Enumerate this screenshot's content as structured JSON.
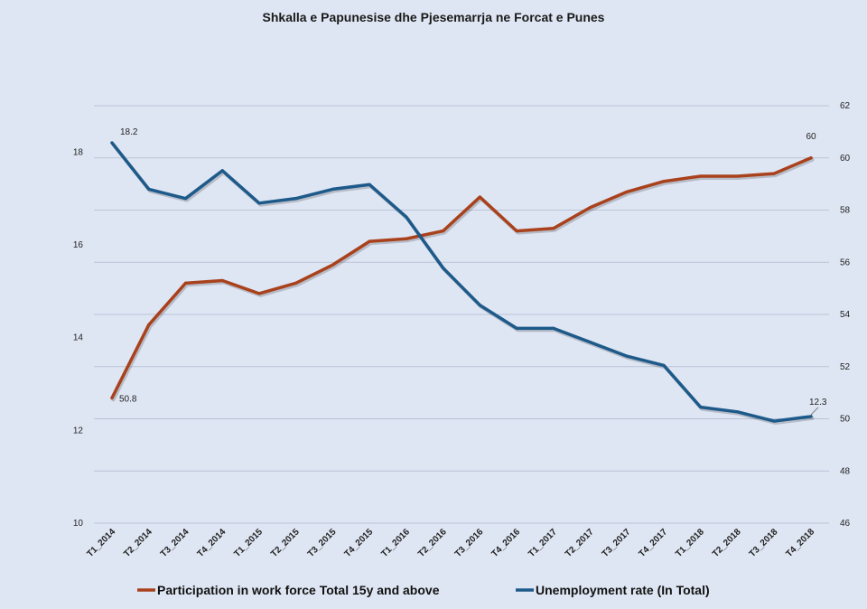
{
  "chart_data": {
    "type": "line",
    "title": "Shkalla  e Papunesise  dhe Pjesemarrja  ne Forcat e Punes",
    "categories": [
      "T1_2014",
      "T2_2014",
      "T3_2014",
      "T4_2014",
      "T1_2015",
      "T2_2015",
      "T3_2015",
      "T4_2015",
      "T1_2016",
      "T2_2016",
      "T3_2016",
      "T4_2016",
      "T1_2017",
      "T2_2017",
      "T3_2017",
      "T4_2017",
      "T1_2018",
      "T2_2018",
      "T3_2018",
      "T4_2018"
    ],
    "left_axis": {
      "ylim": [
        10,
        19
      ],
      "ticks": [
        "10",
        "12",
        "14",
        "16",
        "18"
      ]
    },
    "right_axis": {
      "ylim": [
        46,
        62
      ],
      "ticks": [
        "46",
        "48",
        "50",
        "52",
        "54",
        "56",
        "58",
        "60",
        "62"
      ]
    },
    "grid": true,
    "legend_position": "bottom",
    "series": [
      {
        "name": "Participation in work force  Total 15y and above",
        "axis": "right",
        "color": "#a9421c",
        "values": [
          50.8,
          53.6,
          55.2,
          55.3,
          54.8,
          55.2,
          55.9,
          56.8,
          56.9,
          57.2,
          58.5,
          57.2,
          57.3,
          58.1,
          58.7,
          59.1,
          59.3,
          59.3,
          59.4,
          60.0
        ],
        "data_labels": [
          {
            "index": 0,
            "text": "50.8"
          },
          {
            "index": 19,
            "text": "60"
          }
        ]
      },
      {
        "name": "Unemployment rate (In Total)",
        "axis": "left",
        "color": "#1d5a8a",
        "values": [
          18.2,
          17.2,
          17.0,
          17.6,
          16.9,
          17.0,
          17.2,
          17.3,
          16.6,
          15.5,
          14.7,
          14.2,
          14.2,
          13.9,
          13.6,
          13.4,
          12.5,
          12.4,
          12.2,
          12.3
        ],
        "data_labels": [
          {
            "index": 0,
            "text": "18.2"
          },
          {
            "index": 19,
            "text": "12.3"
          }
        ]
      }
    ]
  }
}
